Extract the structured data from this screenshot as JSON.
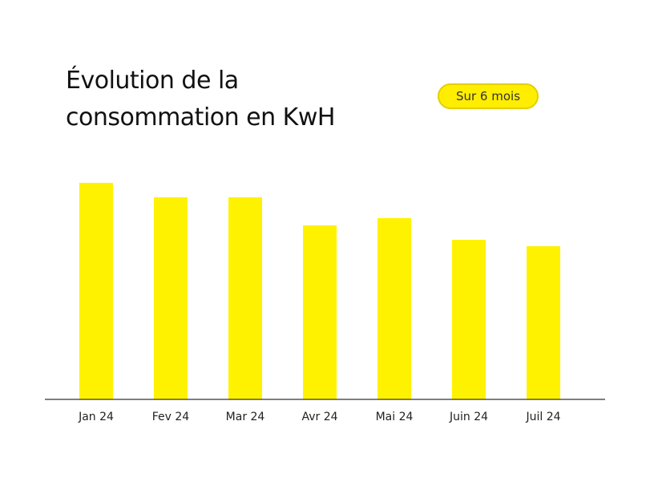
{
  "chart_data": {
    "type": "bar",
    "title_lines": [
      "Évolution de la",
      "consommation en KwH"
    ],
    "categories": [
      "Jan 24",
      "Fev 24",
      "Mar 24",
      "Avr 24",
      "Mai 24",
      "Juin 24",
      "Juil 24"
    ],
    "values": [
      270,
      252,
      252,
      217,
      226,
      199,
      191
    ],
    "ylim": [
      0,
      300
    ],
    "grid": false,
    "bar_color": "#fff200",
    "axis_color": "#333333"
  },
  "period_filter": {
    "label": "Sur 6 mois",
    "color": "#ffee00"
  }
}
